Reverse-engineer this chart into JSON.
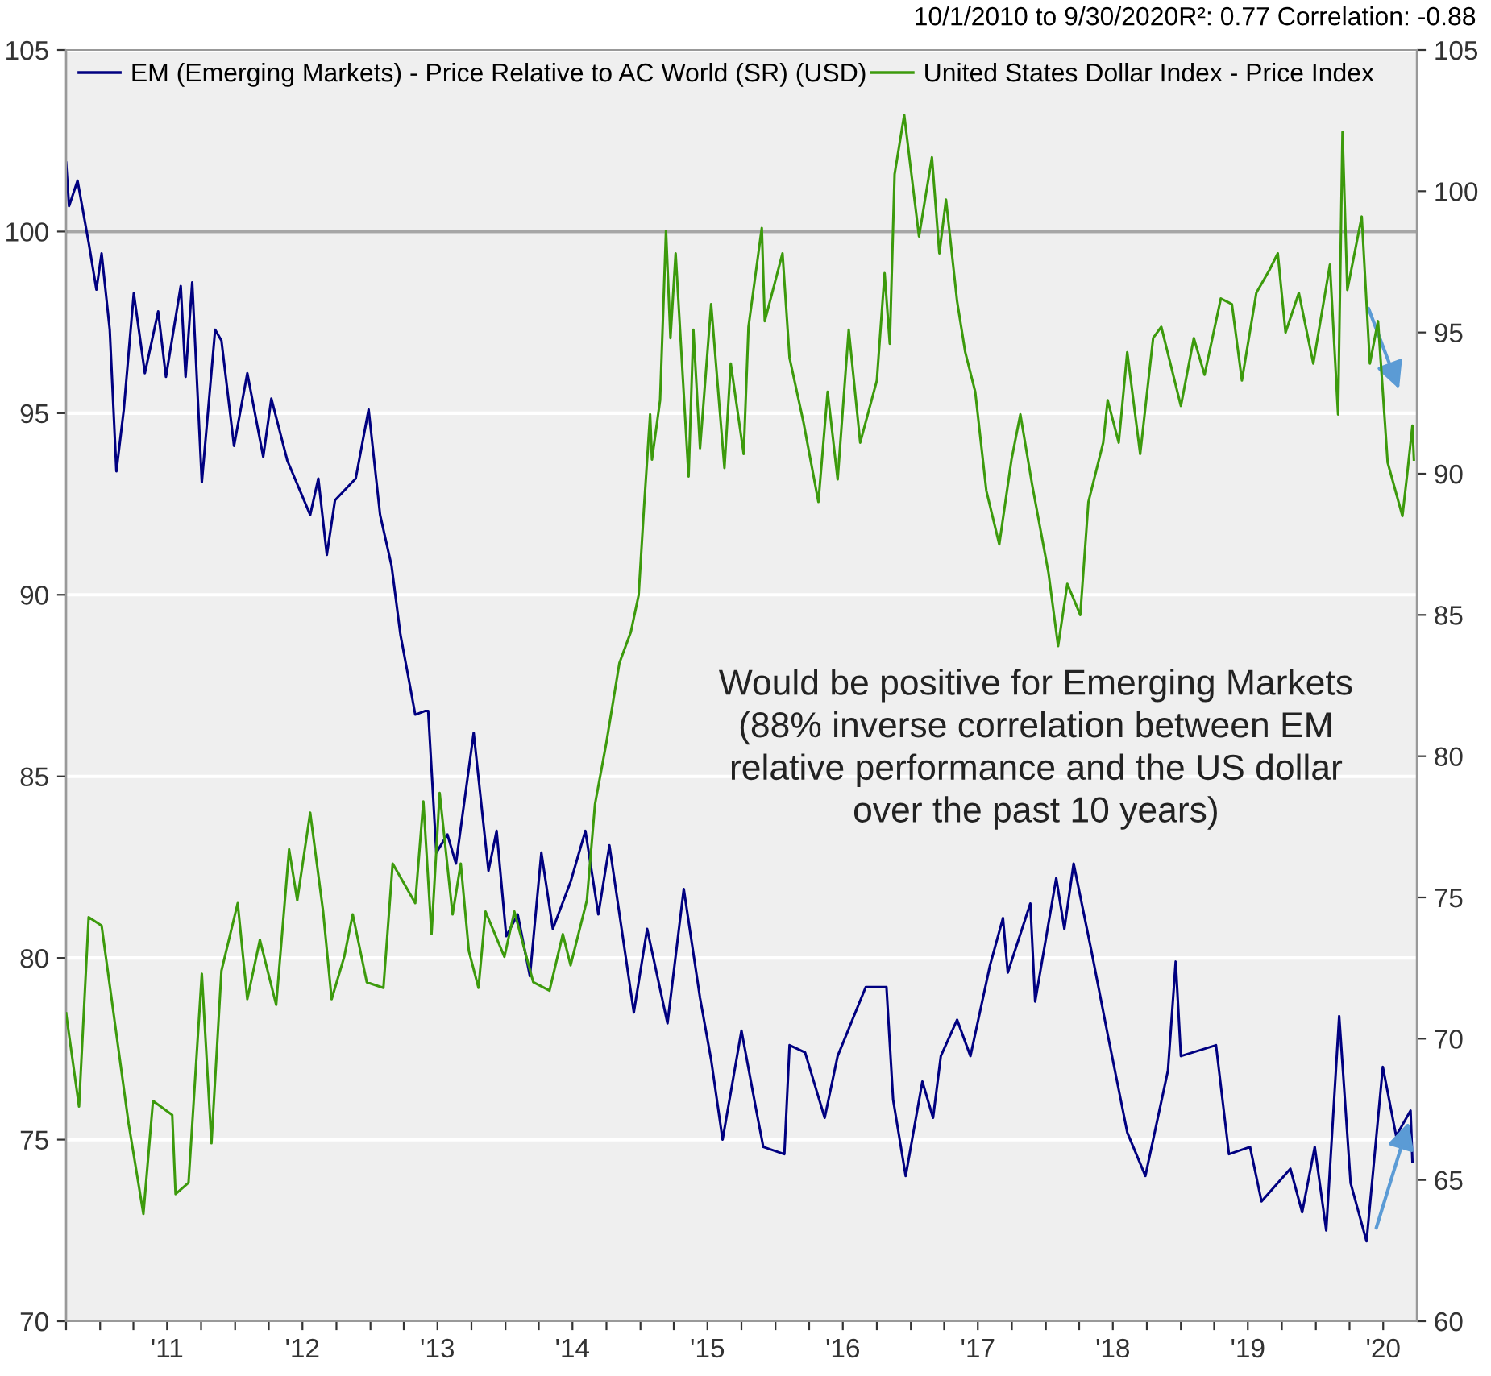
{
  "chart_data": {
    "type": "line",
    "legend": "top left",
    "grid": "y",
    "marker": "none",
    "line_style": "solid",
    "annotations": [
      "10/1/2010 to 9/30/2020R²: 0.77 Correlation: -0.88",
      "Would be positive for Emerging Markets\n(88% inverse correlation between EM\nrelative performance and the US dollar\nover the past 10 years)"
    ],
    "xlim": [
      "2010-10-01",
      "2020-09-30"
    ],
    "xticks": [
      {
        "value": "2010-10-01",
        "label": null
      },
      {
        "value": "2011-01-01",
        "label": null
      },
      {
        "value": "2011-04-01",
        "label": null
      },
      {
        "value": "2011-07-01",
        "label": "'11"
      },
      {
        "value": "2011-10-01",
        "label": null
      },
      {
        "value": "2012-01-01",
        "label": null
      },
      {
        "value": "2012-04-01",
        "label": null
      },
      {
        "value": "2012-07-01",
        "label": "'12"
      },
      {
        "value": "2012-10-01",
        "label": null
      },
      {
        "value": "2013-01-01",
        "label": null
      },
      {
        "value": "2013-04-01",
        "label": null
      },
      {
        "value": "2013-07-01",
        "label": "'13"
      },
      {
        "value": "2013-10-01",
        "label": null
      },
      {
        "value": "2014-01-01",
        "label": null
      },
      {
        "value": "2014-04-01",
        "label": null
      },
      {
        "value": "2014-07-01",
        "label": "'14"
      },
      {
        "value": "2014-10-01",
        "label": null
      },
      {
        "value": "2015-01-01",
        "label": null
      },
      {
        "value": "2015-04-01",
        "label": null
      },
      {
        "value": "2015-07-01",
        "label": "'15"
      },
      {
        "value": "2015-10-01",
        "label": null
      },
      {
        "value": "2016-01-01",
        "label": null
      },
      {
        "value": "2016-04-01",
        "label": null
      },
      {
        "value": "2016-07-01",
        "label": "'16"
      },
      {
        "value": "2016-10-01",
        "label": null
      },
      {
        "value": "2017-01-01",
        "label": null
      },
      {
        "value": "2017-04-01",
        "label": null
      },
      {
        "value": "2017-07-01",
        "label": "'17"
      },
      {
        "value": "2017-10-01",
        "label": null
      },
      {
        "value": "2018-01-01",
        "label": null
      },
      {
        "value": "2018-04-01",
        "label": null
      },
      {
        "value": "2018-07-01",
        "label": "'18"
      },
      {
        "value": "2018-10-01",
        "label": null
      },
      {
        "value": "2019-01-01",
        "label": null
      },
      {
        "value": "2019-04-01",
        "label": null
      },
      {
        "value": "2019-07-01",
        "label": "'19"
      },
      {
        "value": "2019-10-01",
        "label": null
      },
      {
        "value": "2020-01-01",
        "label": null
      },
      {
        "value": "2020-04-01",
        "label": null
      },
      {
        "value": "2020-07-01",
        "label": "'20"
      }
    ],
    "ylim": [
      70,
      105
    ],
    "yticks": [
      70,
      75,
      80,
      85,
      90,
      95,
      100,
      105
    ],
    "y2lim": [
      60,
      105
    ],
    "y2ticks": [
      60,
      65,
      70,
      75,
      80,
      85,
      90,
      95,
      100,
      105
    ],
    "ref_lines": [
      {
        "axis": "y",
        "value": 100,
        "label": null,
        "color": "#a6a6a6",
        "line_style": "solid"
      }
    ],
    "series": [
      {
        "name": "EM (Emerging Markets) - Price Relative to AC World (SR) (USD)",
        "color": "#000080",
        "axis": "y",
        "x": [
          "2010-10-01",
          "2010-10-09",
          "2010-11-01",
          "2010-12-01",
          "2010-12-22",
          "2011-01-05",
          "2011-01-27",
          "2011-02-14",
          "2011-03-06",
          "2011-04-02",
          "2011-05-02",
          "2011-06-07",
          "2011-06-28",
          "2011-08-07",
          "2011-08-20",
          "2011-09-07",
          "2011-10-03",
          "2011-11-08",
          "2011-11-25",
          "2011-12-29",
          "2012-02-03",
          "2012-03-17",
          "2012-04-08",
          "2012-05-21",
          "2012-07-22",
          "2012-08-13",
          "2012-09-05",
          "2012-09-27",
          "2012-11-22",
          "2012-12-27",
          "2013-01-27",
          "2013-02-27",
          "2013-03-23",
          "2013-04-14",
          "2013-05-02",
          "2013-05-28",
          "2013-06-06",
          "2013-06-28",
          "2013-07-28",
          "2013-08-20",
          "2013-10-07",
          "2013-11-16",
          "2013-12-08",
          "2014-01-03",
          "2014-02-03",
          "2014-03-08",
          "2014-04-08",
          "2014-05-09",
          "2014-06-26",
          "2014-08-05",
          "2014-09-09",
          "2014-10-09",
          "2014-12-14",
          "2015-01-19",
          "2015-03-15",
          "2015-04-28",
          "2015-06-11",
          "2015-07-11",
          "2015-08-11",
          "2015-10-01",
          "2015-11-12",
          "2015-11-29",
          "2016-01-25",
          "2016-02-08",
          "2016-03-21",
          "2016-05-13",
          "2016-06-17",
          "2016-09-01",
          "2016-10-27",
          "2016-11-14",
          "2016-12-18",
          "2017-02-01",
          "2017-03-02",
          "2017-03-23",
          "2017-05-06",
          "2017-06-11",
          "2017-08-03",
          "2017-09-07",
          "2017-09-20",
          "2017-11-20",
          "2017-12-03",
          "2018-01-29",
          "2018-02-20",
          "2018-03-17",
          "2018-05-04",
          "2018-06-17",
          "2018-08-09",
          "2018-09-27",
          "2018-11-27",
          "2018-12-18",
          "2019-01-01",
          "2019-04-06",
          "2019-05-11",
          "2019-07-07",
          "2019-08-07",
          "2019-10-24",
          "2019-11-25",
          "2019-12-29",
          "2020-01-29",
          "2020-03-04",
          "2020-04-04",
          "2020-05-17",
          "2020-06-30",
          "2020-08-05",
          "2020-09-13",
          "2020-09-18"
        ],
        "values": [
          101.9,
          100.7,
          101.4,
          99.7,
          98.4,
          99.4,
          97.3,
          93.4,
          95.1,
          98.3,
          96.1,
          97.8,
          96.0,
          98.5,
          96.0,
          98.6,
          93.1,
          97.3,
          97.0,
          94.1,
          96.1,
          93.8,
          95.4,
          93.7,
          92.2,
          93.2,
          91.1,
          92.6,
          93.2,
          95.1,
          92.2,
          90.8,
          88.9,
          87.7,
          86.7,
          86.8,
          86.8,
          82.9,
          83.4,
          82.6,
          86.2,
          82.4,
          83.5,
          80.6,
          81.2,
          79.5,
          82.9,
          80.8,
          82.1,
          83.5,
          81.2,
          83.1,
          78.5,
          80.8,
          78.2,
          81.9,
          78.9,
          77.2,
          75.0,
          78.0,
          75.7,
          74.8,
          74.6,
          77.6,
          77.4,
          75.6,
          77.3,
          79.2,
          79.2,
          76.1,
          74.0,
          76.6,
          75.6,
          77.3,
          78.3,
          77.3,
          79.8,
          81.1,
          79.6,
          81.5,
          78.8,
          82.2,
          80.8,
          82.6,
          80.2,
          77.9,
          75.2,
          74.0,
          76.9,
          79.9,
          77.3,
          77.6,
          74.6,
          74.8,
          73.3,
          74.2,
          73.0,
          74.8,
          72.5,
          78.4,
          73.8,
          72.2,
          77.0,
          75.1,
          75.8,
          74.4
        ]
      },
      {
        "name": "United States Dollar Index - Price Index",
        "color": "#3c9a0c",
        "axis": "y2",
        "x": [
          "2010-10-01",
          "2010-11-05",
          "2010-12-01",
          "2011-01-05",
          "2011-03-19",
          "2011-04-28",
          "2011-05-24",
          "2011-07-15",
          "2011-07-24",
          "2011-08-28",
          "2011-10-03",
          "2011-10-29",
          "2011-11-25",
          "2012-01-08",
          "2012-02-03",
          "2012-03-08",
          "2012-04-21",
          "2012-05-26",
          "2012-06-17",
          "2012-07-22",
          "2012-08-26",
          "2012-09-18",
          "2012-10-22",
          "2012-11-14",
          "2012-12-22",
          "2013-02-05",
          "2013-03-02",
          "2013-05-02",
          "2013-05-24",
          "2013-06-15",
          "2013-07-07",
          "2013-08-11",
          "2013-09-02",
          "2013-09-24",
          "2013-10-20",
          "2013-11-08",
          "2013-12-29",
          "2014-01-25",
          "2014-03-17",
          "2014-04-30",
          "2014-06-05",
          "2014-06-26",
          "2014-08-09",
          "2014-08-31",
          "2014-10-01",
          "2014-11-05",
          "2014-12-06",
          "2014-12-27",
          "2015-01-10",
          "2015-01-27",
          "2015-02-01",
          "2015-02-23",
          "2015-03-11",
          "2015-03-23",
          "2015-04-06",
          "2015-05-11",
          "2015-05-24",
          "2015-06-11",
          "2015-07-11",
          "2015-08-16",
          "2015-09-02",
          "2015-10-07",
          "2015-10-20",
          "2015-11-25",
          "2015-12-03",
          "2016-01-20",
          "2016-02-08",
          "2016-03-17",
          "2016-04-26",
          "2016-05-21",
          "2016-06-17",
          "2016-07-17",
          "2016-08-17",
          "2016-10-01",
          "2016-10-22",
          "2016-11-05",
          "2016-11-18",
          "2016-12-14",
          "2017-01-23",
          "2017-02-27",
          "2017-03-19",
          "2017-04-06",
          "2017-05-06",
          "2017-05-28",
          "2017-06-24",
          "2017-07-24",
          "2017-08-28",
          "2017-09-30",
          "2017-10-24",
          "2017-11-25",
          "2018-01-08",
          "2018-02-03",
          "2018-02-28",
          "2018-04-04",
          "2018-04-26",
          "2018-06-05",
          "2018-06-17",
          "2018-07-17",
          "2018-08-09",
          "2018-09-13",
          "2018-10-18",
          "2018-11-09",
          "2019-01-01",
          "2019-02-05",
          "2019-03-06",
          "2019-04-19",
          "2019-05-19",
          "2019-06-15",
          "2019-07-24",
          "2019-08-28",
          "2019-09-20",
          "2019-10-11",
          "2019-11-16",
          "2019-12-25",
          "2020-02-08",
          "2020-03-01",
          "2020-03-13",
          "2020-03-26",
          "2020-05-04",
          "2020-05-26",
          "2020-06-17",
          "2020-07-13",
          "2020-08-22",
          "2020-09-04",
          "2020-09-18",
          "2020-09-22"
        ],
        "values": [
          70.9,
          67.6,
          74.3,
          74.0,
          67.0,
          63.8,
          67.8,
          67.3,
          64.5,
          64.9,
          72.3,
          66.3,
          72.4,
          74.8,
          71.4,
          73.5,
          71.2,
          76.7,
          74.9,
          78.0,
          74.5,
          71.4,
          72.9,
          74.4,
          72.0,
          71.8,
          76.2,
          74.8,
          78.4,
          73.7,
          78.7,
          74.4,
          76.2,
          73.1,
          71.8,
          74.5,
          72.9,
          74.5,
          72.0,
          71.7,
          73.7,
          72.6,
          74.9,
          78.3,
          80.5,
          83.3,
          84.4,
          85.7,
          88.7,
          92.1,
          90.5,
          92.6,
          98.6,
          94.8,
          97.8,
          89.9,
          95.1,
          90.9,
          96.0,
          90.2,
          93.9,
          90.7,
          95.2,
          98.7,
          95.4,
          97.8,
          94.1,
          91.8,
          89.0,
          92.9,
          89.8,
          95.1,
          91.1,
          93.3,
          97.1,
          94.6,
          100.6,
          102.7,
          98.4,
          101.2,
          97.8,
          99.7,
          96.1,
          94.3,
          92.9,
          89.4,
          87.5,
          90.5,
          92.1,
          89.6,
          86.5,
          83.9,
          86.1,
          85.0,
          89.0,
          91.1,
          92.6,
          91.1,
          94.3,
          90.7,
          94.8,
          95.2,
          92.4,
          94.8,
          93.5,
          96.2,
          96.0,
          93.3,
          96.4,
          97.2,
          97.8,
          95.0,
          96.4,
          93.9,
          97.4,
          92.1,
          102.1,
          96.5,
          99.1,
          93.9,
          95.4,
          90.4,
          88.5,
          90.0,
          91.7,
          90.5
        ]
      }
    ]
  }
}
